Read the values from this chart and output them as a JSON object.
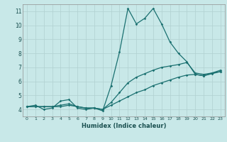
{
  "xlabel": "Humidex (Indice chaleur)",
  "bg_color": "#c8e8e8",
  "grid_color": "#b0d0d0",
  "line_color": "#1a7070",
  "xlim": [
    -0.5,
    23.5
  ],
  "ylim": [
    3.5,
    11.5
  ],
  "xticks": [
    0,
    1,
    2,
    3,
    4,
    5,
    6,
    7,
    8,
    9,
    10,
    11,
    12,
    13,
    14,
    15,
    16,
    17,
    18,
    19,
    20,
    21,
    22,
    23
  ],
  "yticks": [
    4,
    5,
    6,
    7,
    8,
    9,
    10,
    11
  ],
  "s1_y": [
    4.2,
    4.3,
    4.0,
    4.1,
    4.6,
    4.7,
    4.1,
    4.0,
    4.1,
    3.9,
    5.7,
    8.1,
    11.2,
    10.1,
    10.5,
    11.2,
    10.1,
    8.8,
    8.0,
    7.4,
    6.5,
    6.4,
    6.6,
    6.8
  ],
  "s2_y": [
    4.2,
    4.2,
    4.2,
    4.2,
    4.2,
    4.3,
    4.2,
    4.1,
    4.1,
    4.0,
    4.3,
    4.6,
    4.9,
    5.2,
    5.4,
    5.7,
    5.9,
    6.1,
    6.3,
    6.45,
    6.5,
    6.4,
    6.55,
    6.7
  ],
  "s3_y": [
    4.2,
    4.2,
    4.2,
    4.2,
    4.3,
    4.4,
    4.2,
    4.1,
    4.1,
    4.0,
    4.5,
    5.2,
    5.9,
    6.3,
    6.55,
    6.8,
    7.0,
    7.1,
    7.2,
    7.35,
    6.6,
    6.5,
    6.6,
    6.7
  ]
}
